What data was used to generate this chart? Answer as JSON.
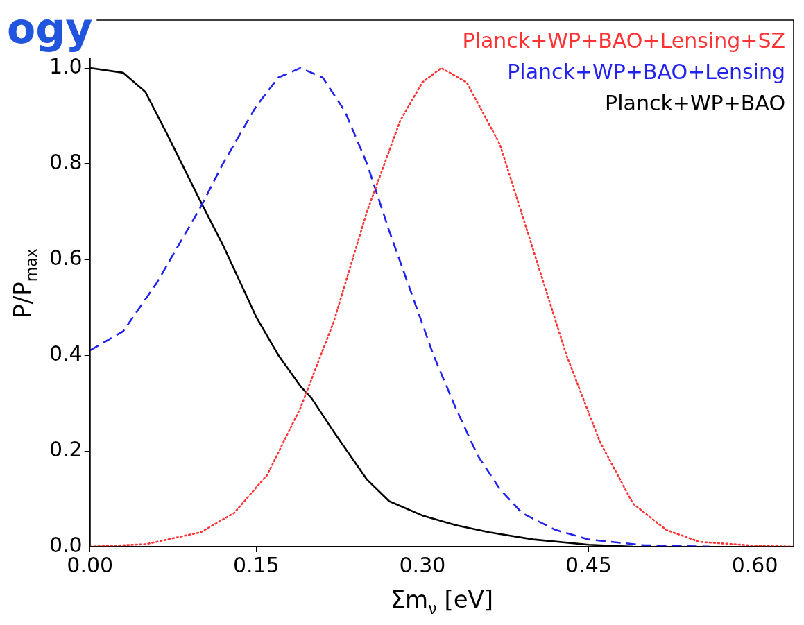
{
  "chart_data": {
    "type": "line",
    "xlabel": "Σm$_{ν}$ [eV]",
    "ylabel": "P/P$_{max}$",
    "annotations": [
      "ogy"
    ],
    "xlim": [
      0,
      0.635
    ],
    "ylim": [
      0,
      1.1
    ],
    "xticks": [
      {
        "value": 0,
        "label": "0.00"
      },
      0.15,
      {
        "value": 0.3,
        "label": "0.30"
      },
      0.45,
      {
        "value": 0.6,
        "label": "0.60"
      }
    ],
    "yticks": [
      {
        "value": 0,
        "label": "0.0"
      },
      0.2,
      0.4,
      0.6,
      0.8,
      {
        "value": 1,
        "label": "1.0"
      }
    ],
    "grid": false,
    "legend": "top right",
    "marker": "none",
    "series": [
      {
        "name": "Planck+WP+BAO+Lensing+SZ",
        "color": "#ff3333",
        "line_style": "dotted",
        "x": [
          0,
          0.05,
          0.1,
          0.13,
          0.16,
          0.19,
          0.22,
          0.25,
          0.28,
          0.3,
          0.317,
          0.34,
          0.37,
          0.4,
          0.43,
          0.46,
          0.49,
          0.52,
          0.55,
          0.6,
          0.635
        ],
        "values": [
          0,
          0.005,
          0.03,
          0.07,
          0.15,
          0.29,
          0.47,
          0.7,
          0.89,
          0.97,
          1.0,
          0.97,
          0.84,
          0.62,
          0.4,
          0.22,
          0.09,
          0.035,
          0.01,
          0.002,
          0
        ]
      },
      {
        "name": "Planck+WP+BAO+Lensing",
        "color": "#2222ee",
        "line_style": "dashed",
        "x": [
          0,
          0.03,
          0.06,
          0.09,
          0.1,
          0.12,
          0.15,
          0.17,
          0.19,
          0.21,
          0.23,
          0.25,
          0.27,
          0.29,
          0.31,
          0.33,
          0.35,
          0.37,
          0.39,
          0.42,
          0.45,
          0.5,
          0.56
        ],
        "values": [
          0.41,
          0.45,
          0.55,
          0.67,
          0.71,
          0.8,
          0.92,
          0.98,
          1.0,
          0.98,
          0.91,
          0.8,
          0.66,
          0.53,
          0.4,
          0.29,
          0.19,
          0.12,
          0.07,
          0.035,
          0.015,
          0.003,
          0
        ]
      },
      {
        "name": "Planck+WP+BAO",
        "color": "#000000",
        "line_style": "solid",
        "x": [
          0,
          0.03,
          0.05,
          0.07,
          0.1,
          0.12,
          0.15,
          0.17,
          0.19,
          0.2,
          0.22,
          0.25,
          0.27,
          0.3,
          0.33,
          0.36,
          0.4,
          0.45,
          0.49
        ],
        "values": [
          1.0,
          0.99,
          0.95,
          0.86,
          0.72,
          0.63,
          0.48,
          0.4,
          0.335,
          0.31,
          0.24,
          0.14,
          0.095,
          0.065,
          0.045,
          0.03,
          0.015,
          0.004,
          0
        ]
      }
    ]
  }
}
